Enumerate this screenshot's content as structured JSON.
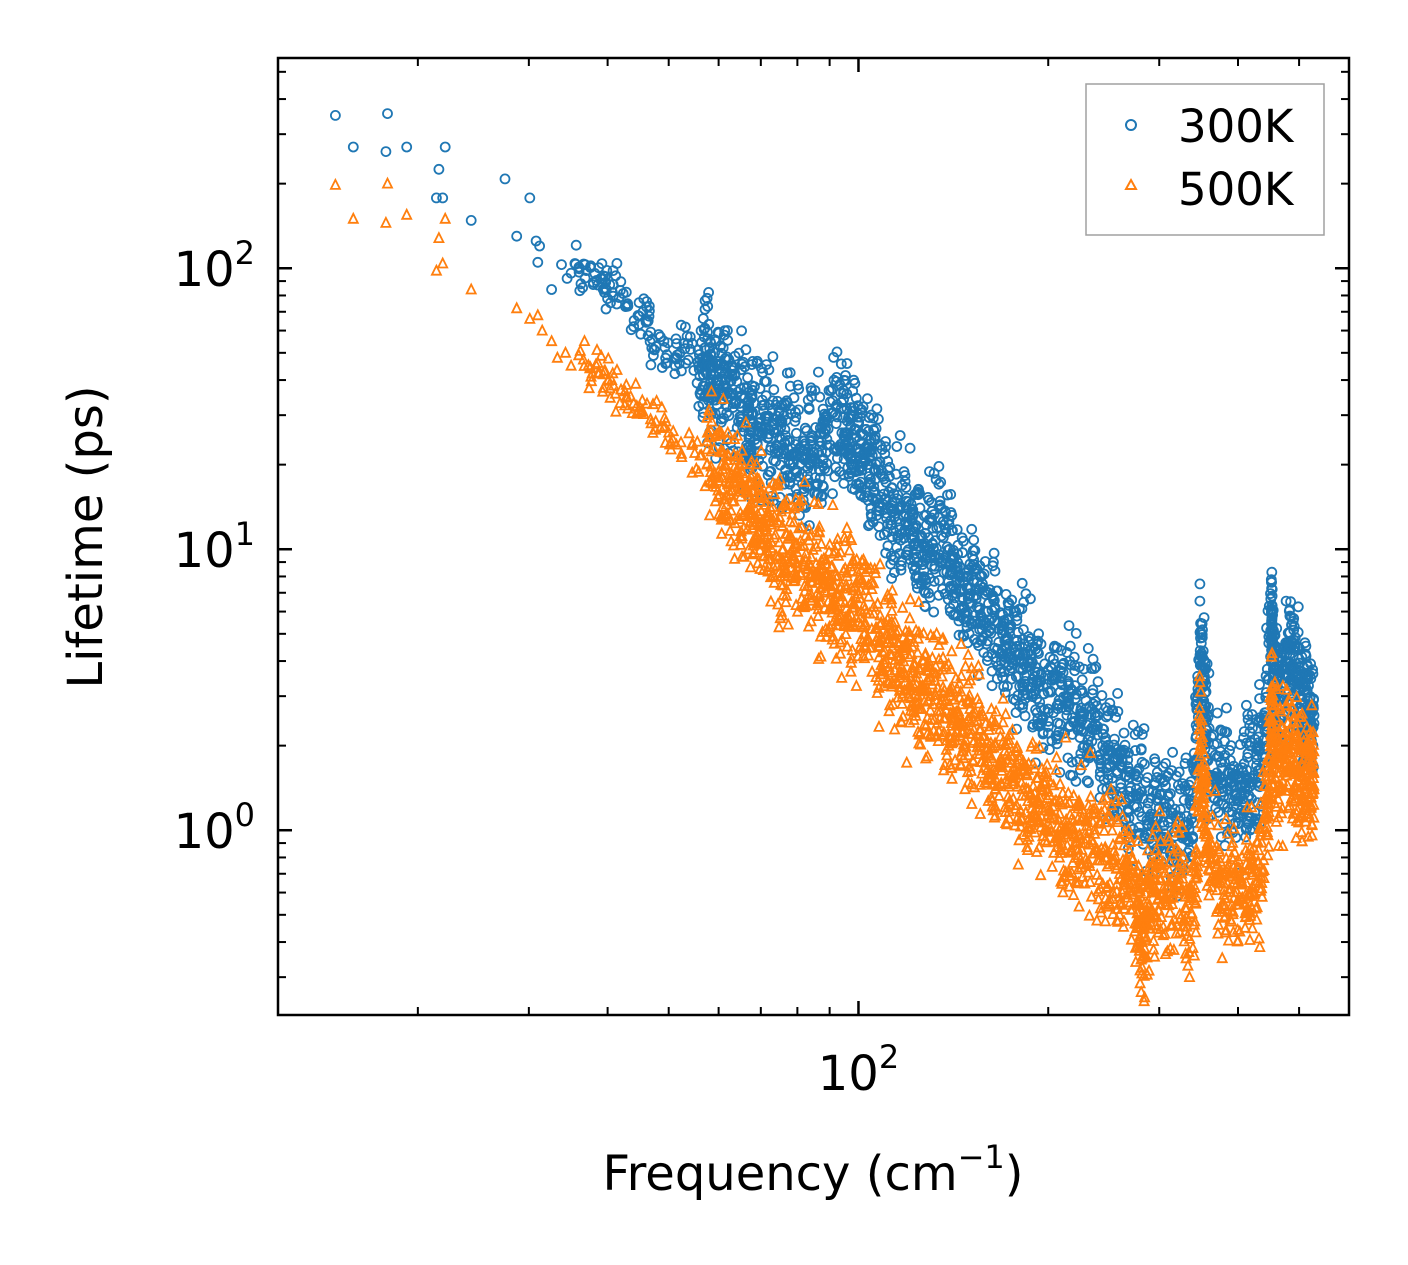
{
  "chart_data": {
    "type": "scatter",
    "xscale": "log",
    "yscale": "log",
    "xlabel": "Frequency (cm",
    "xlabel_sup": "−1",
    "xlabel_end": ")",
    "ylabel": "Lifetime (ps)",
    "xlim": [
      12,
      600
    ],
    "ylim": [
      0.22,
      560
    ],
    "x_major_ticks": [
      {
        "value": 100,
        "base": "10",
        "exp": "2"
      }
    ],
    "y_major_ticks": [
      {
        "value": 1,
        "base": "10",
        "exp": "0"
      },
      {
        "value": 10,
        "base": "10",
        "exp": "1"
      },
      {
        "value": 100,
        "base": "10",
        "exp": "2"
      }
    ],
    "legend_position": "top-right",
    "series": [
      {
        "name": "300K",
        "marker": "circle",
        "color": "#1f77b4",
        "points": [
          [
            14.8,
            350
          ],
          [
            15.8,
            270
          ],
          [
            17.8,
            260
          ],
          [
            17.9,
            355
          ],
          [
            19.2,
            270
          ],
          [
            21.6,
            225
          ],
          [
            21.4,
            178
          ],
          [
            21.9,
            178
          ],
          [
            22.1,
            270
          ],
          [
            24.3,
            148
          ],
          [
            27.5,
            208
          ],
          [
            28.7,
            130
          ],
          [
            30.1,
            178
          ],
          [
            30.8,
            125
          ],
          [
            31.2,
            120
          ],
          [
            31.0,
            105
          ],
          [
            32.6,
            84
          ],
          [
            33.8,
            103
          ],
          [
            34.5,
            92
          ],
          [
            35.0,
            96
          ],
          [
            35.5,
            104
          ],
          [
            36.3,
            88
          ],
          [
            37.6,
            102
          ],
          [
            39.0,
            92
          ],
          [
            39.6,
            85
          ],
          [
            40.0,
            78
          ],
          [
            41.2,
            94
          ],
          [
            42.7,
            73
          ],
          [
            44.0,
            62
          ],
          [
            45.5,
            70
          ],
          [
            46.4,
            65
          ],
          [
            47.0,
            52
          ],
          [
            48.5,
            57
          ],
          [
            49.7,
            46
          ],
          [
            51.4,
            48
          ],
          [
            52.9,
            54
          ],
          [
            54.1,
            57
          ],
          [
            55.8,
            45
          ],
          [
            57.4,
            47
          ],
          [
            58.3,
            40
          ],
          [
            60.3,
            42
          ],
          [
            62.0,
            36
          ],
          [
            64.7,
            33
          ],
          [
            66.9,
            31
          ],
          [
            68.0,
            28
          ],
          [
            71.0,
            27
          ],
          [
            73.6,
            26
          ],
          [
            76.4,
            24
          ],
          [
            79.1,
            22
          ],
          [
            82.0,
            21
          ],
          [
            85.0,
            22
          ],
          [
            88.0,
            21
          ],
          [
            92.2,
            28
          ],
          [
            95.3,
            26
          ],
          [
            97.6,
            24
          ],
          [
            100.2,
            22
          ],
          [
            103.5,
            20
          ],
          [
            106.0,
            19
          ],
          [
            110.1,
            15
          ],
          [
            114.0,
            13
          ],
          [
            118.7,
            12.5
          ],
          [
            122.7,
            11
          ],
          [
            127.3,
            10.5
          ],
          [
            131.0,
            10.5
          ],
          [
            136.3,
            11
          ],
          [
            140.6,
            9.5
          ],
          [
            145.0,
            8
          ],
          [
            150.0,
            6.8
          ],
          [
            155.5,
            6.2
          ],
          [
            161.0,
            5.6
          ],
          [
            167.0,
            5.2
          ],
          [
            173.0,
            4.6
          ],
          [
            179.0,
            4.2
          ],
          [
            185.0,
            3.8
          ],
          [
            192.0,
            3.4
          ],
          [
            200.0,
            3.1
          ],
          [
            208.0,
            2.9
          ],
          [
            216.0,
            2.8
          ],
          [
            225.0,
            2.6
          ],
          [
            234.0,
            2.3
          ],
          [
            244.0,
            2.0
          ],
          [
            254.0,
            1.8
          ],
          [
            265.0,
            1.55
          ],
          [
            276.0,
            1.4
          ],
          [
            288.0,
            1.25
          ],
          [
            300.0,
            1.2
          ],
          [
            313.0,
            1.1
          ],
          [
            327.0,
            1.05
          ],
          [
            340.0,
            1.15
          ],
          [
            348.0,
            4.0
          ],
          [
            352.0,
            3.3
          ],
          [
            356.0,
            2.2
          ],
          [
            370.0,
            1.6
          ],
          [
            385.0,
            1.4
          ],
          [
            400.0,
            1.3
          ],
          [
            413.0,
            1.5
          ],
          [
            428.0,
            1.7
          ],
          [
            440.0,
            2.1
          ],
          [
            452.0,
            6.0
          ],
          [
            454.0,
            4.2
          ],
          [
            458.0,
            3.2
          ],
          [
            468.0,
            3.0
          ],
          [
            480.0,
            4.5
          ],
          [
            490.0,
            3.8
          ],
          [
            500.0,
            3.2
          ],
          [
            510.0,
            2.8
          ],
          [
            520.0,
            2.6
          ],
          [
            528.0,
            2.4
          ]
        ]
      },
      {
        "name": "500K",
        "marker": "triangle",
        "color": "#ff7f0e",
        "points": [
          [
            14.8,
            198
          ],
          [
            15.8,
            150
          ],
          [
            17.8,
            145
          ],
          [
            17.9,
            200
          ],
          [
            19.2,
            155
          ],
          [
            21.4,
            98
          ],
          [
            21.6,
            128
          ],
          [
            21.9,
            104
          ],
          [
            22.1,
            150
          ],
          [
            24.3,
            84
          ],
          [
            28.7,
            72
          ],
          [
            30.1,
            66
          ],
          [
            31.0,
            68
          ],
          [
            31.5,
            60
          ],
          [
            32.6,
            55
          ],
          [
            33.3,
            48
          ],
          [
            34.3,
            50
          ],
          [
            35.0,
            45
          ],
          [
            36.0,
            49
          ],
          [
            37.5,
            44
          ],
          [
            38.6,
            46
          ],
          [
            39.5,
            43
          ],
          [
            40.6,
            40
          ],
          [
            42.0,
            37
          ],
          [
            43.5,
            35
          ],
          [
            45.0,
            32
          ],
          [
            46.8,
            29
          ],
          [
            48.5,
            27
          ],
          [
            50.0,
            26
          ],
          [
            52.3,
            24
          ],
          [
            55.0,
            22
          ],
          [
            57.5,
            20
          ],
          [
            60.1,
            18
          ],
          [
            62.0,
            17
          ],
          [
            64.5,
            16
          ],
          [
            67.0,
            13.5
          ],
          [
            69.0,
            12.5
          ],
          [
            71.0,
            12
          ],
          [
            73.5,
            11
          ],
          [
            76.0,
            10
          ],
          [
            78.7,
            9.5
          ],
          [
            82.0,
            8.8
          ],
          [
            85.0,
            8
          ],
          [
            88.0,
            7.5
          ],
          [
            91.0,
            7.2
          ],
          [
            94.0,
            6.8
          ],
          [
            97.5,
            6.5
          ],
          [
            101.0,
            6
          ],
          [
            105.0,
            5.2
          ],
          [
            109.0,
            4.8
          ],
          [
            113.0,
            4.2
          ],
          [
            117.0,
            3.8
          ],
          [
            121.0,
            3.5
          ],
          [
            125.0,
            3.2
          ],
          [
            130.0,
            3
          ],
          [
            135.0,
            2.8
          ],
          [
            140.0,
            2.6
          ],
          [
            145.0,
            2.4
          ],
          [
            150.0,
            2.2
          ],
          [
            156.0,
            2.0
          ],
          [
            162.0,
            1.85
          ],
          [
            168.0,
            1.7
          ],
          [
            175.0,
            1.55
          ],
          [
            182.0,
            1.4
          ],
          [
            189.0,
            1.3
          ],
          [
            196.0,
            1.2
          ],
          [
            204.0,
            1.1
          ],
          [
            212.0,
            1.0
          ],
          [
            220.0,
            0.95
          ],
          [
            229.0,
            0.9
          ],
          [
            238.0,
            0.85
          ],
          [
            248.0,
            0.8
          ],
          [
            258.0,
            0.75
          ],
          [
            268.0,
            0.72
          ],
          [
            277.0,
            0.55
          ],
          [
            282.0,
            0.4
          ],
          [
            287.0,
            0.55
          ],
          [
            295.0,
            0.62
          ],
          [
            305.0,
            0.6
          ],
          [
            318.0,
            0.62
          ],
          [
            330.0,
            0.58
          ],
          [
            342.0,
            0.55
          ],
          [
            348.0,
            2.3
          ],
          [
            352.0,
            1.5
          ],
          [
            358.0,
            0.9
          ],
          [
            372.0,
            0.7
          ],
          [
            388.0,
            0.62
          ],
          [
            402.0,
            0.58
          ],
          [
            418.0,
            0.6
          ],
          [
            432.0,
            0.65
          ],
          [
            445.0,
            1.2
          ],
          [
            452.0,
            2.5
          ],
          [
            456.0,
            1.8
          ],
          [
            466.0,
            1.6
          ],
          [
            478.0,
            2.1
          ],
          [
            490.0,
            1.8
          ],
          [
            500.0,
            1.6
          ],
          [
            512.0,
            1.5
          ],
          [
            522.0,
            1.5
          ],
          [
            528.0,
            1.4
          ]
        ]
      }
    ]
  }
}
